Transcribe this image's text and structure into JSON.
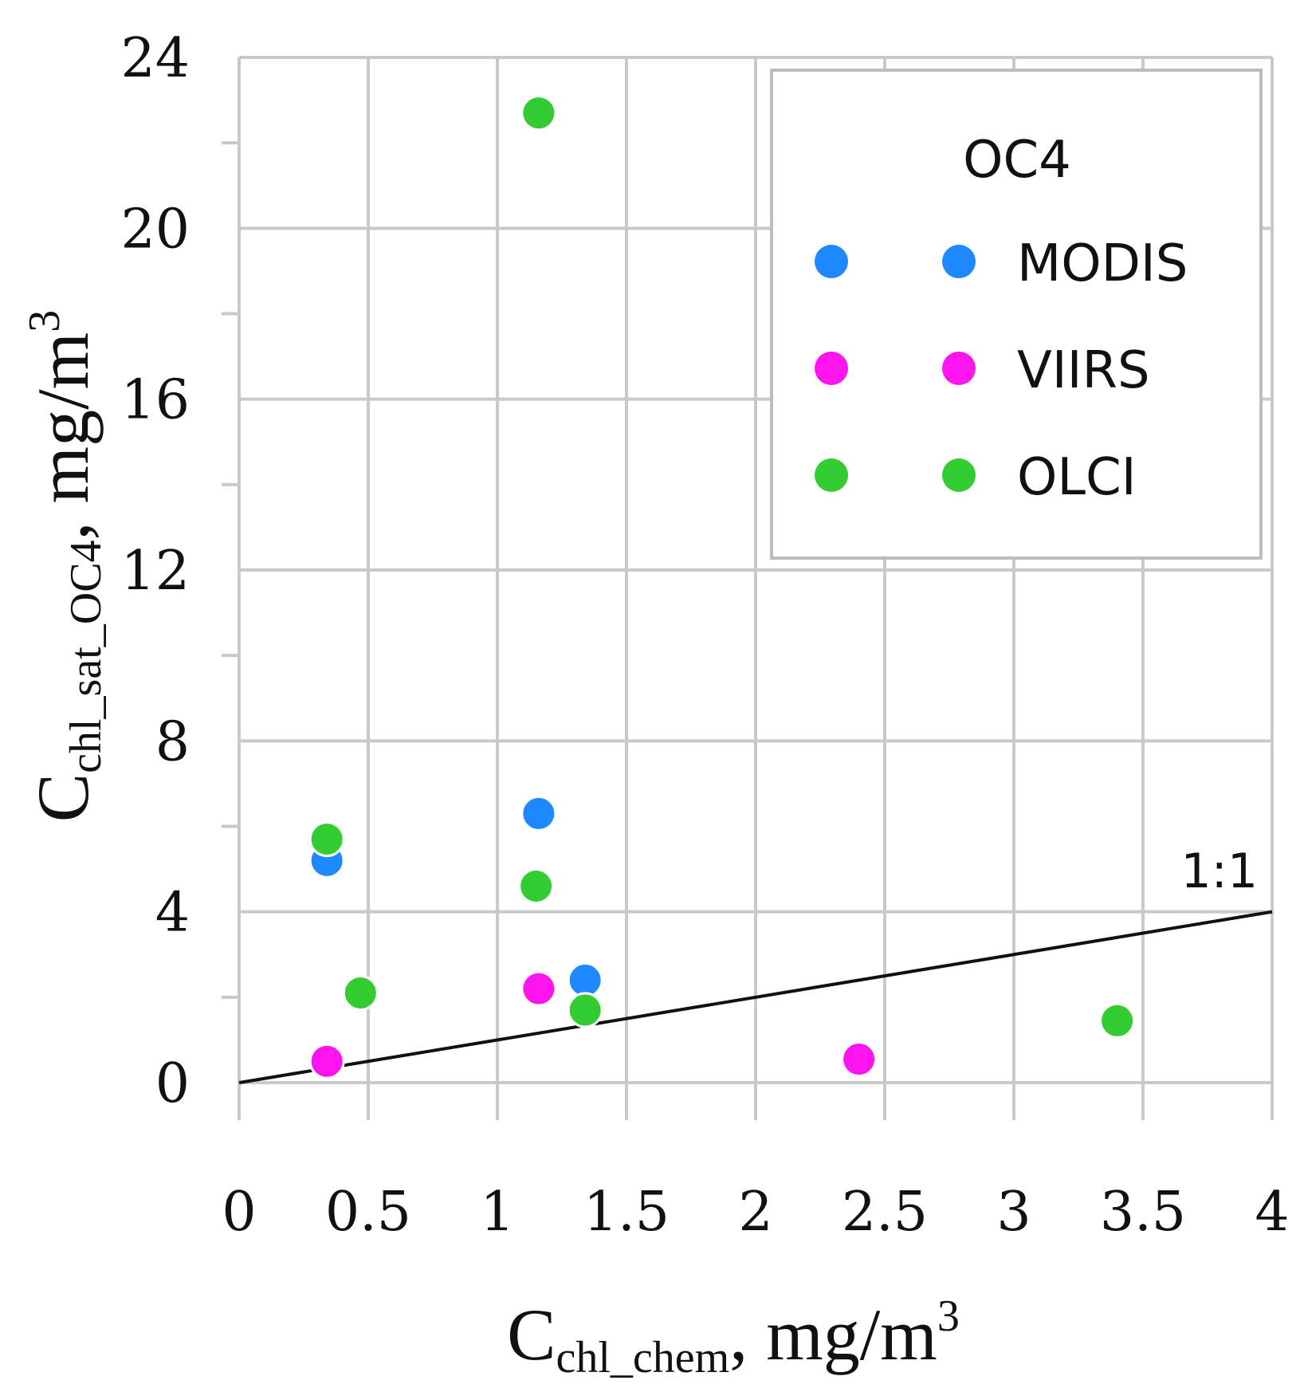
{
  "chart_data": {
    "type": "scatter",
    "title": "",
    "xlabel": {
      "main": "C",
      "sub": "chl_chem",
      "suffix": ", mg/m",
      "sup": "3"
    },
    "ylabel": {
      "main": "C",
      "sub": "chl_sat_OC4",
      "suffix": ", mg/m",
      "sup": "3"
    },
    "xlim": [
      0,
      4
    ],
    "ylim": [
      0,
      24
    ],
    "x_ticks": [
      0,
      0.5,
      1,
      1.5,
      2,
      2.5,
      3,
      3.5,
      4
    ],
    "x_tick_labels": [
      "0",
      "0.5",
      "1",
      "1.5",
      "2",
      "2.5",
      "3",
      "3.5",
      "4"
    ],
    "y_ticks": [
      0,
      4,
      8,
      12,
      16,
      20,
      24
    ],
    "y_tick_labels": [
      "0",
      "4",
      "8",
      "12",
      "16",
      "20",
      "24"
    ],
    "grid": true,
    "legend": {
      "title": "OC4",
      "placement": "top-right",
      "entries": [
        "MODIS",
        "VIIRS",
        "OLCI"
      ]
    },
    "reference_line": {
      "label": "1:1",
      "x": [
        0,
        4
      ],
      "y": [
        0,
        4
      ]
    },
    "series": [
      {
        "name": "MODIS",
        "color": "#1e88ff",
        "x": [
          0.34,
          1.16,
          1.34
        ],
        "y": [
          5.2,
          6.3,
          2.4
        ]
      },
      {
        "name": "VIIRS",
        "color": "#ff14f0",
        "x": [
          0.34,
          1.16,
          2.4
        ],
        "y": [
          0.5,
          2.2,
          0.55
        ]
      },
      {
        "name": "OLCI",
        "color": "#33cc33",
        "x": [
          0.34,
          0.47,
          1.15,
          1.34,
          3.4,
          1.16
        ],
        "y": [
          5.7,
          2.1,
          4.6,
          1.7,
          1.45,
          22.7
        ]
      }
    ]
  }
}
